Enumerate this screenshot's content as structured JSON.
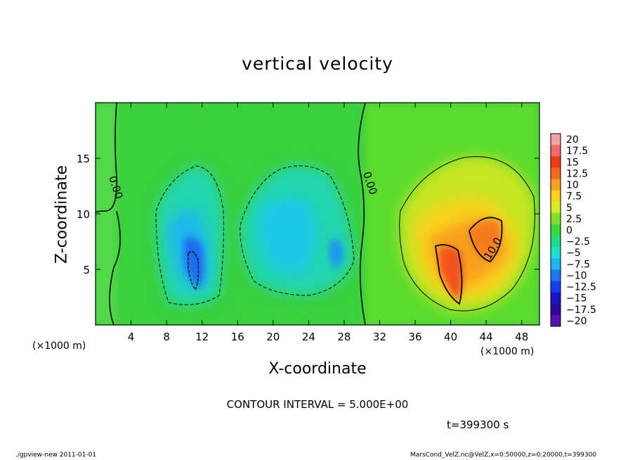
{
  "chart_data": {
    "type": "heatmap",
    "title": "vertical velocity",
    "xlabel": "X-coordinate",
    "ylabel": "Z-coordinate",
    "x_unit_left": "(×1000 m)",
    "x_unit_right": "(×1000 m)",
    "xlim": [
      0,
      50
    ],
    "ylim": [
      0,
      20
    ],
    "x_ticks": [
      4,
      8,
      12,
      16,
      20,
      24,
      28,
      32,
      36,
      40,
      44,
      48
    ],
    "y_ticks": [
      5,
      10,
      15
    ],
    "colorbar": {
      "levels": [
        "20",
        "17.5",
        "15",
        "12.5",
        "10",
        "7.5",
        "5",
        "2.5",
        "0",
        "−2.5",
        "−5",
        "−7.5",
        "−10",
        "−12.5",
        "−15",
        "−17.5",
        "−20"
      ],
      "colors": [
        "#f7a0a0",
        "#f06a6a",
        "#f23a1a",
        "#f56a1a",
        "#f9a01e",
        "#f9d21e",
        "#d8ea20",
        "#7de228",
        "#36d83a",
        "#1edc8a",
        "#1ee0d2",
        "#1ab8f0",
        "#1a78f0",
        "#1a3cf0",
        "#1a14c8",
        "#2a0aa0",
        "#5a10b0"
      ]
    },
    "contour_labels": [
      "0.00",
      "0.00",
      "10.0"
    ],
    "contour_interval": "CONTOUR INTERVAL = 5.000E+00",
    "time": "t=399300 s"
  },
  "footer": {
    "left": "./gpview-new   2011-01-01",
    "right": "MarsCond_VelZ.nc@VelZ,x=0:50000,z=0:20000,t=399300"
  }
}
